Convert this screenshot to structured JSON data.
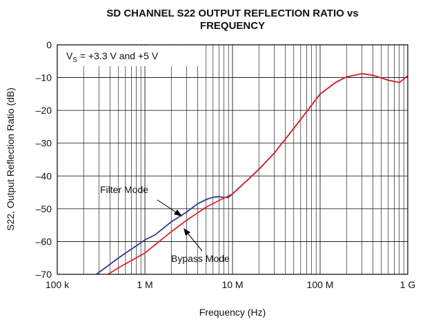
{
  "chart_data": {
    "type": "line",
    "title": [
      "SD CHANNEL S22 OUTPUT REFLECTION RATIO vs",
      "FREQUENCY"
    ],
    "xlabel": "Frequency (Hz)",
    "ylabel": "S22, Output Reflection Ratio (dB)",
    "annotation": [
      "V",
      "S",
      " = +3.3 V and +5 V"
    ],
    "xscale": "log",
    "grid": true,
    "xlim": [
      100000,
      1000000000
    ],
    "xticks": [
      {
        "value": 100000,
        "label": "100 k"
      },
      {
        "value": 1000000,
        "label": "1 M"
      },
      {
        "value": 10000000,
        "label": "10 M"
      },
      {
        "value": 100000000,
        "label": "100 M"
      },
      {
        "value": 1000000000,
        "label": "1 G"
      }
    ],
    "ylim": [
      -70,
      0
    ],
    "yticks": [
      0,
      {
        "value": -10,
        "label": "–10"
      },
      {
        "value": -20,
        "label": "–20"
      },
      {
        "value": -30,
        "label": "–30"
      },
      {
        "value": -40,
        "label": "–40"
      },
      {
        "value": -50,
        "label": "–50"
      },
      {
        "value": -60,
        "label": "–60"
      },
      {
        "value": -70,
        "label": "–70"
      }
    ],
    "series": [
      {
        "name": "Filter Mode",
        "color": "#2b3990",
        "x": [
          280000,
          500000,
          1000000,
          1300000,
          2000000,
          3000000,
          4000000,
          5000000,
          6000000,
          7000000,
          8000000,
          9000000,
          10000000,
          20000000,
          30000000,
          50000000,
          100000000,
          150000000,
          200000000,
          300000000,
          400000000,
          600000000,
          800000000,
          1000000000
        ],
        "values": [
          -70,
          -65,
          -59.5,
          -58,
          -54,
          -51,
          -48.5,
          -47.2,
          -46.5,
          -46.3,
          -46.6,
          -46.5,
          -45.5,
          -38,
          -33,
          -25.5,
          -15,
          -11.5,
          -9.8,
          -8.8,
          -9.3,
          -10.8,
          -11.5,
          -9.5
        ]
      },
      {
        "name": "Bypass Mode",
        "color": "#e0202a",
        "x": [
          380000,
          500000,
          1000000,
          2000000,
          3000000,
          5000000,
          7000000,
          10000000,
          20000000,
          30000000,
          50000000,
          100000000,
          150000000,
          200000000,
          300000000,
          400000000,
          600000000,
          800000000,
          1000000000
        ],
        "values": [
          -70,
          -68,
          -63.5,
          -57,
          -53.5,
          -49.5,
          -47.5,
          -45.5,
          -38,
          -33,
          -25.5,
          -15,
          -11.5,
          -9.8,
          -8.8,
          -9.3,
          -10.8,
          -11.5,
          -9.5
        ]
      }
    ]
  }
}
